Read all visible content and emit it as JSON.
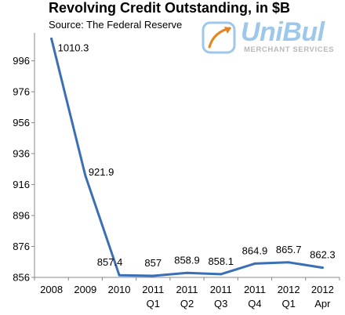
{
  "header": {
    "title": "Revolving Credit Outstanding, in $B",
    "subtitle": "Source: The Federal Reserve"
  },
  "logo": {
    "name": "UniBul",
    "tagline": "MERCHANT SERVICES",
    "icon": "swoosh-arrow-icon",
    "colors": {
      "frame": "#9ec8ea",
      "arrow": "#e8821e",
      "tagline": "#b8b8b8"
    }
  },
  "chart_data": {
    "type": "line",
    "title": "Revolving Credit Outstanding, in $B",
    "subtitle": "Source: The Federal Reserve",
    "categories": [
      [
        "2008"
      ],
      [
        "2009"
      ],
      [
        "2010"
      ],
      [
        "2011",
        "Q1"
      ],
      [
        "2011",
        "Q2"
      ],
      [
        "2011",
        "Q3"
      ],
      [
        "2011",
        "Q4"
      ],
      [
        "2012",
        "Q1"
      ],
      [
        "2012",
        "Apr"
      ]
    ],
    "values": [
      1010.3,
      921.9,
      857.4,
      857,
      858.9,
      858.1,
      864.9,
      865.7,
      862.3
    ],
    "data_labels": [
      "1010.3",
      "921.9",
      "857.4",
      "857",
      "858.9",
      "858.1",
      "864.9",
      "865.7",
      "862.3"
    ],
    "y_ticks": [
      856,
      876,
      896,
      916,
      936,
      956,
      976,
      996
    ],
    "ylim": [
      856,
      1012
    ],
    "xlabel": "",
    "ylabel": "",
    "grid": false,
    "legend": "none",
    "line_color": "#3a6fb5"
  }
}
